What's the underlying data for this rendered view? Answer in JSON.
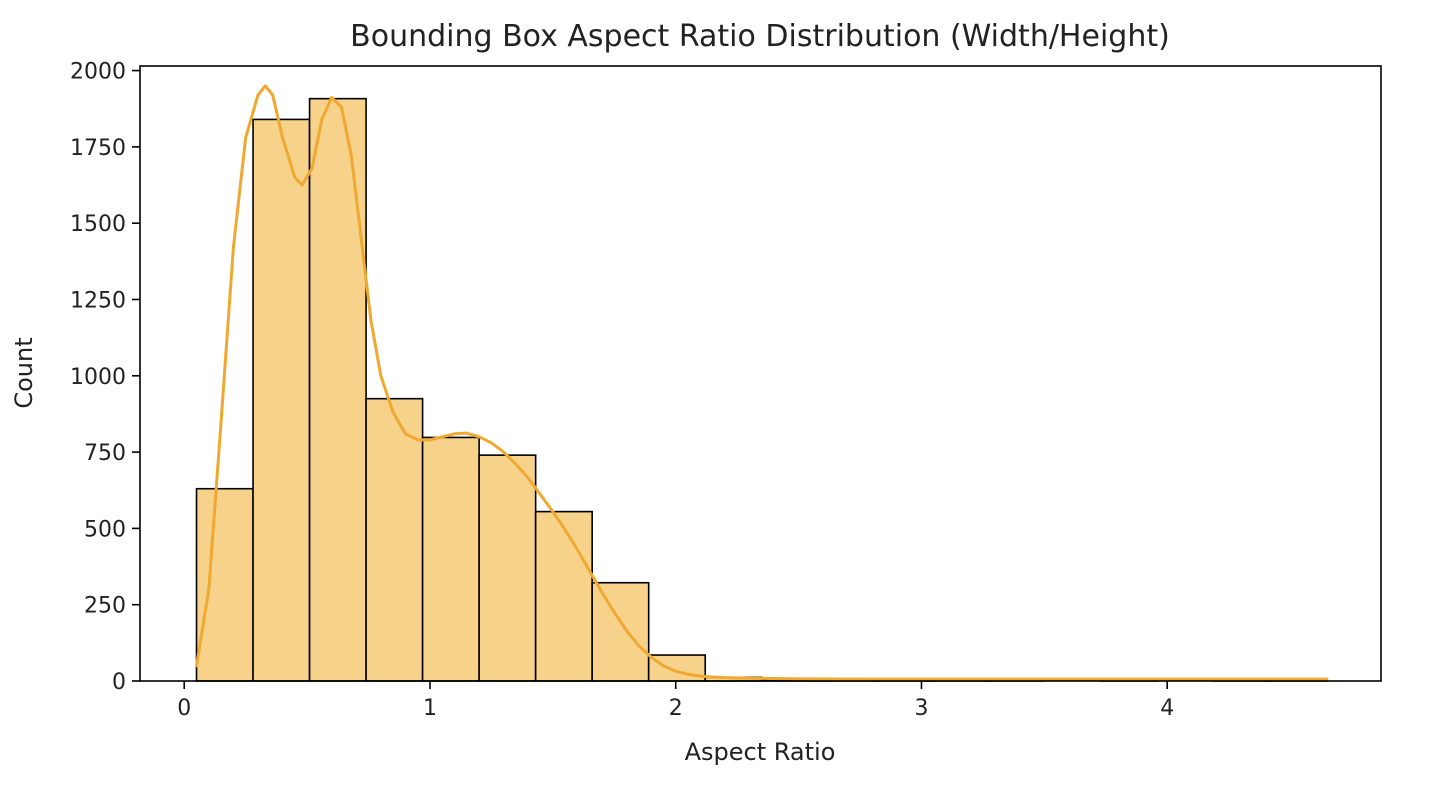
{
  "chart_data": {
    "type": "bar",
    "title": "Bounding Box Aspect Ratio Distribution (Width/Height)",
    "xlabel": "Aspect Ratio",
    "ylabel": "Count",
    "xlim": [
      -0.18,
      4.87
    ],
    "ylim": [
      0,
      2015
    ],
    "xticks": [
      0,
      1,
      2,
      3,
      4
    ],
    "yticks": [
      0,
      250,
      500,
      750,
      1000,
      1250,
      1500,
      1750,
      2000
    ],
    "grid": false,
    "legend": "none",
    "colors": {
      "bar_fill": "#f7d28b",
      "bar_edge": "#000000",
      "kde_line": "#f0a830"
    },
    "series": [
      {
        "kind": "histogram",
        "bins": [
          {
            "x0": 0.05,
            "x1": 0.28,
            "count": 630
          },
          {
            "x0": 0.28,
            "x1": 0.51,
            "count": 1840
          },
          {
            "x0": 0.51,
            "x1": 0.74,
            "count": 1908
          },
          {
            "x0": 0.74,
            "x1": 0.97,
            "count": 925
          },
          {
            "x0": 0.97,
            "x1": 1.2,
            "count": 798
          },
          {
            "x0": 1.2,
            "x1": 1.43,
            "count": 740
          },
          {
            "x0": 1.43,
            "x1": 1.66,
            "count": 555
          },
          {
            "x0": 1.66,
            "x1": 1.89,
            "count": 322
          },
          {
            "x0": 1.89,
            "x1": 2.12,
            "count": 85
          },
          {
            "x0": 2.12,
            "x1": 2.35,
            "count": 12
          },
          {
            "x0": 2.35,
            "x1": 2.58,
            "count": 3
          },
          {
            "x0": 2.58,
            "x1": 2.81,
            "count": 2
          },
          {
            "x0": 2.81,
            "x1": 3.04,
            "count": 1
          },
          {
            "x0": 3.04,
            "x1": 3.27,
            "count": 1
          },
          {
            "x0": 3.27,
            "x1": 3.5,
            "count": 1
          },
          {
            "x0": 3.5,
            "x1": 3.73,
            "count": 0
          },
          {
            "x0": 3.73,
            "x1": 3.96,
            "count": 1
          },
          {
            "x0": 3.96,
            "x1": 4.19,
            "count": 0
          },
          {
            "x0": 4.19,
            "x1": 4.42,
            "count": 1
          },
          {
            "x0": 4.42,
            "x1": 4.65,
            "count": 1
          }
        ]
      },
      {
        "kind": "kde",
        "points": [
          [
            0.05,
            50
          ],
          [
            0.1,
            300
          ],
          [
            0.15,
            850
          ],
          [
            0.2,
            1420
          ],
          [
            0.25,
            1780
          ],
          [
            0.3,
            1920
          ],
          [
            0.33,
            1950
          ],
          [
            0.36,
            1920
          ],
          [
            0.4,
            1780
          ],
          [
            0.45,
            1650
          ],
          [
            0.48,
            1625
          ],
          [
            0.52,
            1680
          ],
          [
            0.56,
            1840
          ],
          [
            0.6,
            1912
          ],
          [
            0.64,
            1880
          ],
          [
            0.68,
            1720
          ],
          [
            0.72,
            1450
          ],
          [
            0.76,
            1180
          ],
          [
            0.8,
            1000
          ],
          [
            0.85,
            880
          ],
          [
            0.9,
            810
          ],
          [
            0.95,
            790
          ],
          [
            1.0,
            790
          ],
          [
            1.05,
            800
          ],
          [
            1.1,
            810
          ],
          [
            1.15,
            812
          ],
          [
            1.2,
            800
          ],
          [
            1.25,
            780
          ],
          [
            1.3,
            750
          ],
          [
            1.35,
            710
          ],
          [
            1.4,
            665
          ],
          [
            1.45,
            610
          ],
          [
            1.5,
            555
          ],
          [
            1.55,
            495
          ],
          [
            1.6,
            430
          ],
          [
            1.65,
            360
          ],
          [
            1.7,
            290
          ],
          [
            1.75,
            225
          ],
          [
            1.8,
            165
          ],
          [
            1.85,
            115
          ],
          [
            1.9,
            78
          ],
          [
            1.95,
            50
          ],
          [
            2.0,
            32
          ],
          [
            2.05,
            22
          ],
          [
            2.1,
            16
          ],
          [
            2.15,
            13
          ],
          [
            2.2,
            11
          ],
          [
            2.3,
            9
          ],
          [
            2.5,
            7
          ],
          [
            2.8,
            6
          ],
          [
            3.2,
            6
          ],
          [
            3.6,
            6
          ],
          [
            4.0,
            6
          ],
          [
            4.3,
            6
          ],
          [
            4.65,
            6
          ]
        ]
      }
    ]
  }
}
